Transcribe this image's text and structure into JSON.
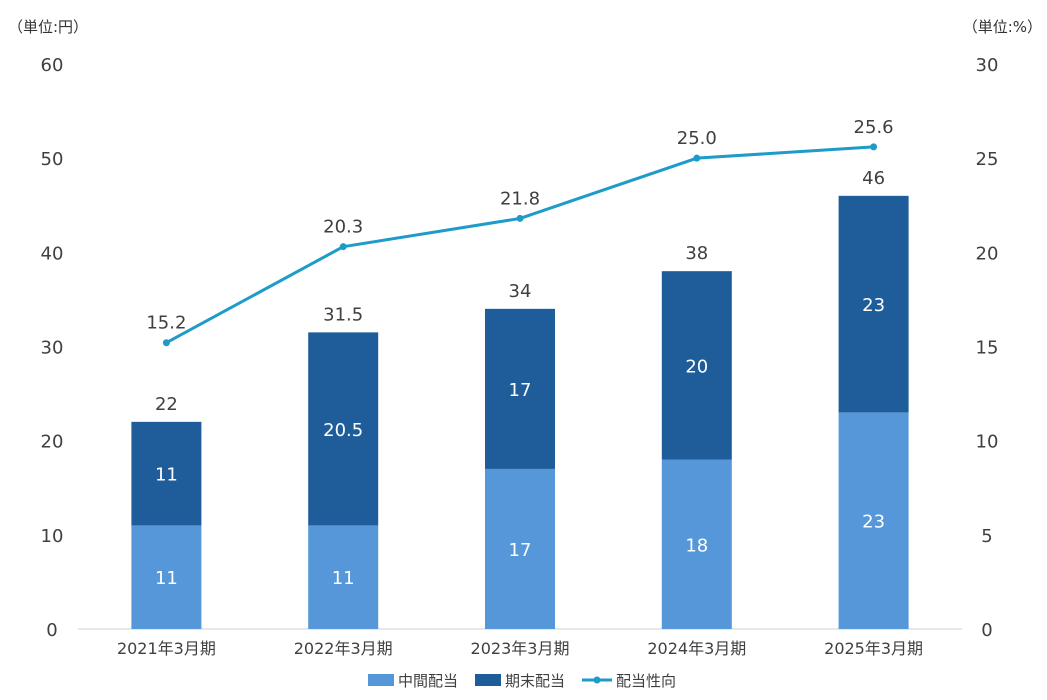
{
  "chart_data": {
    "type": "bar",
    "stacked": true,
    "categories": [
      "2021年3月期",
      "2022年3月期",
      "2023年3月期",
      "2024年3月期",
      "2025年3月期"
    ],
    "series": [
      {
        "name": "中間配当",
        "type": "bar",
        "axis": "left",
        "color": "#5597D9",
        "values": [
          11,
          11,
          17,
          18,
          23
        ],
        "labels": [
          "11",
          "11",
          "17",
          "18",
          "23"
        ]
      },
      {
        "name": "期末配当",
        "type": "bar",
        "axis": "left",
        "color": "#1F5D9A",
        "values": [
          11,
          20.5,
          17,
          20,
          23
        ],
        "labels": [
          "11",
          "20.5",
          "17",
          "20",
          "23"
        ]
      },
      {
        "name": "配当性向",
        "type": "line",
        "axis": "right",
        "color": "#1E9BC9",
        "values": [
          15.2,
          20.3,
          21.8,
          25.0,
          25.6
        ],
        "labels": [
          "15.2",
          "20.3",
          "21.8",
          "25.0",
          "25.6"
        ]
      }
    ],
    "totals": [
      22,
      31.5,
      34,
      38,
      46
    ],
    "total_labels": [
      "22",
      "31.5",
      "34",
      "38",
      "46"
    ],
    "y_left": {
      "unit_label": "（単位:円）",
      "ylim": [
        0,
        60
      ],
      "ticks": [
        0,
        10,
        20,
        30,
        40,
        50,
        60
      ]
    },
    "y_right": {
      "unit_label": "（単位:%）",
      "ylim": [
        0,
        30
      ],
      "ticks": [
        0,
        5,
        10,
        15,
        20,
        25,
        30
      ]
    },
    "legend": {
      "position": "bottom",
      "entries": [
        "中間配当",
        "期末配当",
        "配当性向"
      ]
    },
    "grid": false
  }
}
